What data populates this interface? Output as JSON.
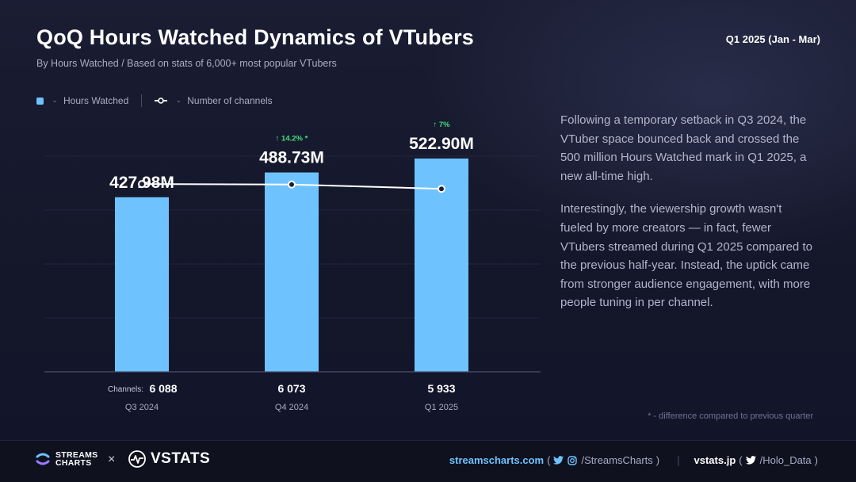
{
  "header": {
    "title": "QoQ Hours Watched Dynamics of VTubers",
    "subtitle": "By Hours Watched / Based on stats of 6,000+ most popular VTubers",
    "period": "Q1 2025 (Jan - Mar)"
  },
  "legend": {
    "hours_label": "Hours Watched",
    "channels_label": "Number of channels",
    "separator": "-"
  },
  "chart_data": {
    "type": "bar",
    "categories": [
      "Q3 2024",
      "Q4 2024",
      "Q1 2025"
    ],
    "series": [
      {
        "name": "Hours Watched",
        "type": "bar",
        "values": [
          427.98,
          488.73,
          522.9
        ],
        "labels": [
          "427.98M",
          "488.73M",
          "522.90M"
        ],
        "color": "#6ec3ff"
      },
      {
        "name": "Number of channels",
        "type": "line",
        "values": [
          6088,
          6073,
          5933
        ],
        "labels": [
          "6 088",
          "6 073",
          "5 933"
        ],
        "color": "#ffffff"
      }
    ],
    "changes": [
      "",
      "↑ 14.2% *",
      "↑ 7%"
    ],
    "change_color": "#3fe07a",
    "channels_prefix": "Channels:",
    "ylim": [
      0,
      620
    ],
    "channels_ylim": [
      0,
      8200
    ],
    "grid": true
  },
  "commentary": {
    "paragraph_1": "Following a temporary setback in Q3 2024, the VTuber space bounced back and crossed the 500 million Hours Watched mark in Q1 2025, a new all-time high.",
    "paragraph_2": "Interestingly, the viewership growth wasn't fueled by more creators — in fact, fewer VTubers streamed during Q1 2025 compared to the previous half-year. Instead, the uptick came from stronger audience engagement, with more people tuning in per channel."
  },
  "footnote": "* - difference compared to previous quarter",
  "footer": {
    "brand_1_line_1": "STREAMS",
    "brand_1_line_2": "CHARTS",
    "times": "×",
    "brand_2": "VSTATS",
    "site_1": "streamscharts.com",
    "handle_1": "/StreamsCharts",
    "site_2": "vstats.jp",
    "handle_2": "/Holo_Data",
    "paren_open": "(",
    "paren_close": ")",
    "pipe": "|"
  },
  "colors": {
    "accent": "#6ec3ff",
    "positive": "#3fe07a",
    "background": "#14162a"
  }
}
